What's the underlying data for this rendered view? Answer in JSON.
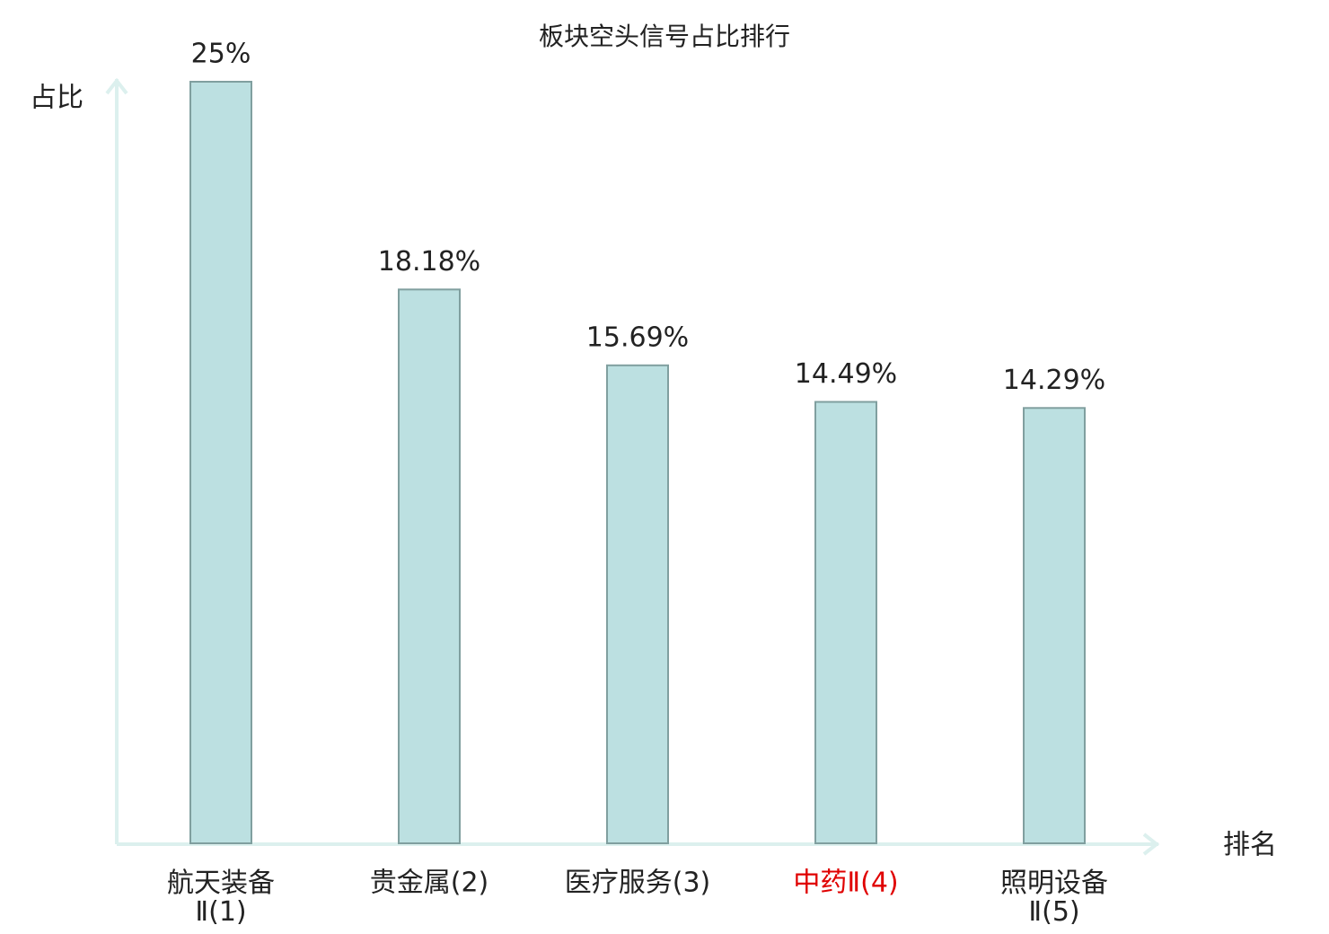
{
  "chart_data": {
    "type": "bar",
    "title": "板块空头信号占比排行",
    "y_label": "占比",
    "x_label": "排名",
    "categories": [
      "航天装备Ⅱ(1)",
      "贵金属(2)",
      "医疗服务(3)",
      "中药Ⅱ(4)",
      "照明设备Ⅱ(5)"
    ],
    "category_colors": [
      "#222222",
      "#222222",
      "#222222",
      "#e00000",
      "#222222"
    ],
    "values": [
      25,
      18.18,
      15.69,
      14.49,
      14.29
    ],
    "value_labels": [
      "25%",
      "18.18%",
      "15.69%",
      "14.49%",
      "14.29%"
    ],
    "color": "#bce0e1",
    "edge_color": "#809f9f",
    "axis_color": "#dcf0ee",
    "ylim": [
      0,
      25
    ]
  }
}
